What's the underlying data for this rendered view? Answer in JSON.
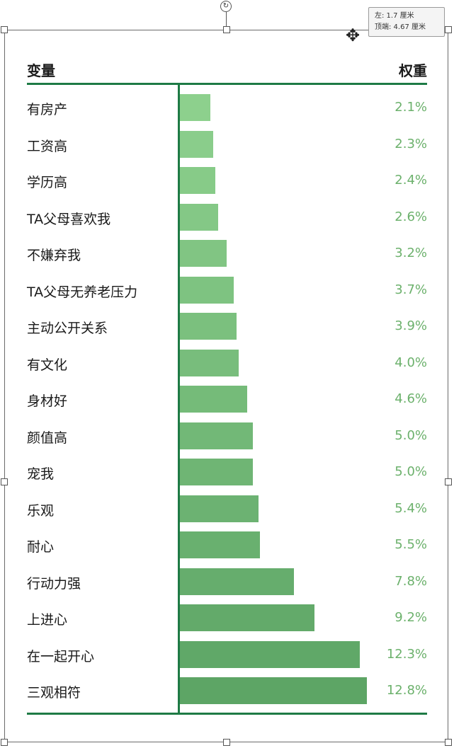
{
  "tooltip": {
    "left_line": "左: 1.7 厘米",
    "top_line": "顶端: 4.67 厘米"
  },
  "chart_data": {
    "type": "bar",
    "orientation": "horizontal",
    "header_left": "变量",
    "header_right": "权重",
    "value_unit": "%",
    "categories": [
      "有房产",
      "工资高",
      "学历高",
      "TA父母喜欢我",
      "不嫌弃我",
      "TA父母无养老压力",
      "主动公开关系",
      "有文化",
      "身材好",
      "颜值高",
      "宠我",
      "乐观",
      "耐心",
      "行动力强",
      "上进心",
      "在一起开心",
      "三观相符"
    ],
    "values": [
      2.1,
      2.3,
      2.4,
      2.6,
      3.2,
      3.7,
      3.9,
      4.0,
      4.6,
      5.0,
      5.0,
      5.4,
      5.5,
      7.8,
      9.2,
      12.3,
      12.8
    ],
    "labels": [
      "2.1%",
      "2.3%",
      "2.4%",
      "2.6%",
      "3.2%",
      "3.7%",
      "3.9%",
      "4.0%",
      "4.6%",
      "5.0%",
      "5.0%",
      "5.4%",
      "5.5%",
      "7.8%",
      "9.2%",
      "12.3%",
      "12.8%"
    ],
    "colors": {
      "bar_light": "#8dd08d",
      "bar_dark": "#5da565",
      "value_text": "#6cb16c",
      "rule": "#1e7a45"
    },
    "grid": false,
    "legend": "none"
  }
}
